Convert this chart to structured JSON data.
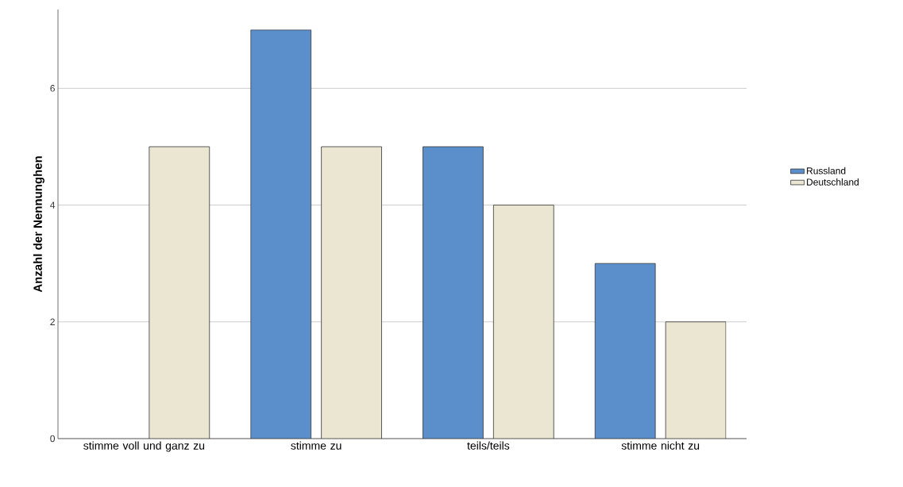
{
  "chart_data": {
    "type": "bar",
    "ylabel": "Anzahl der Nennunghen",
    "categories": [
      "stimme voll und ganz zu",
      "stimme zu",
      "teils/teils",
      "stimme nicht zu"
    ],
    "series": [
      {
        "name": "Russland",
        "color": "#5b8fcb",
        "values": [
          null,
          7,
          5,
          3
        ]
      },
      {
        "name": "Deutschland",
        "color": "#ebe6d2",
        "values": [
          5,
          5,
          4,
          2
        ]
      }
    ],
    "ylim": [
      0,
      7.35
    ],
    "yticks": [
      0,
      2,
      4,
      6
    ],
    "grid": "y",
    "legend": "right"
  }
}
